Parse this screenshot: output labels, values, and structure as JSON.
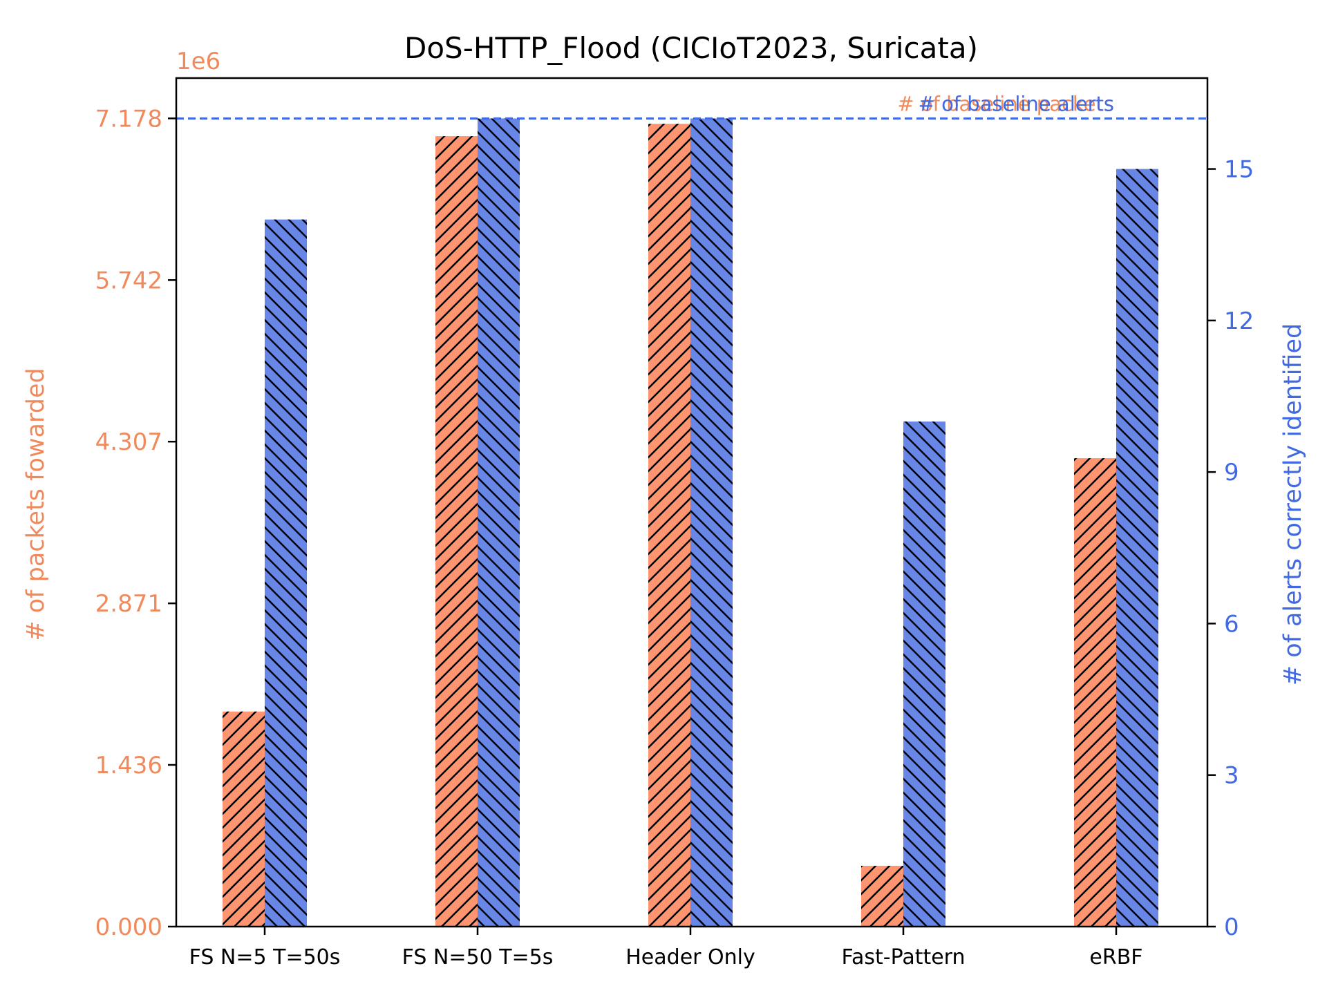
{
  "chart_data": {
    "type": "bar",
    "title": "DoS-HTTP_Flood (CICIoT2023, Suricata)",
    "categories": [
      "FS N=5 T=50s",
      "FS N=50 T=5s",
      "Header Only",
      "Fast-Pattern",
      "eRBF"
    ],
    "left_axis": {
      "label": "# of packets fowarded",
      "offset_label": "1e6",
      "ylim": [
        0,
        7.536
      ],
      "ticks": [
        0.0,
        1.436,
        2.871,
        4.307,
        5.742,
        7.178
      ],
      "tick_labels": [
        "0.000",
        "1.436",
        "2.871",
        "4.307",
        "5.742",
        "7.178"
      ]
    },
    "right_axis": {
      "label": "# of alerts correctly identified",
      "ylim": [
        0,
        16.8
      ],
      "ticks": [
        0,
        3,
        6,
        9,
        12,
        15
      ],
      "tick_labels": [
        "0",
        "3",
        "6",
        "9",
        "12",
        "15"
      ]
    },
    "series": [
      {
        "axis": "left",
        "color": "#ff9470",
        "hatch": "/",
        "values": [
          1.91,
          7.02,
          7.13,
          0.54,
          4.16
        ]
      },
      {
        "axis": "right",
        "color": "#6786e6",
        "hatch": "\\",
        "values": [
          14,
          16,
          16,
          10,
          15
        ]
      }
    ],
    "reference_lines": [
      {
        "axis": "left",
        "value": 7.178,
        "label": "# of baseline packets",
        "color": "#f08a5d"
      },
      {
        "axis": "right",
        "value": 16,
        "label": "# of baseline alerts",
        "color": "#4169e1"
      }
    ],
    "colors": {
      "left_axis": "#f08a5d",
      "right_axis": "#4169e1"
    }
  }
}
